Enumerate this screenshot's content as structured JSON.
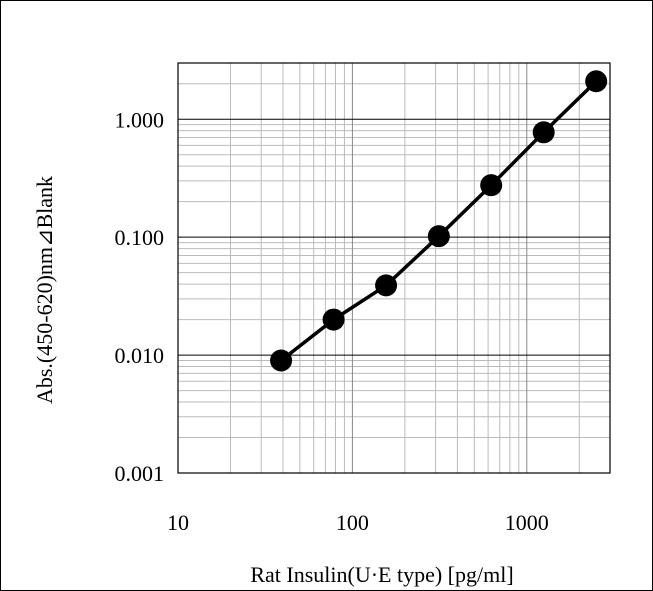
{
  "chart_data": {
    "type": "scatter",
    "title": "",
    "xlabel": "Rat Insulin(U·E type) [pg/ml]",
    "ylabel": "Abs.(450-620)nm⊿Blank",
    "x_scale": "log",
    "y_scale": "log",
    "xlim": [
      10,
      3000
    ],
    "ylim": [
      0.001,
      3.0
    ],
    "x_ticks": [
      10,
      100,
      1000
    ],
    "x_tick_labels": [
      "10",
      "100",
      "1000"
    ],
    "y_ticks": [
      0.001,
      0.01,
      0.1,
      1.0
    ],
    "y_tick_labels": [
      "0.001",
      "0.010",
      "0.100",
      "1.000"
    ],
    "grid": true,
    "legend": "none",
    "series": [
      {
        "line": true,
        "marker": "circle",
        "color": "#000000",
        "points": [
          {
            "x": 39,
            "y": 0.009
          },
          {
            "x": 78,
            "y": 0.02
          },
          {
            "x": 156,
            "y": 0.039
          },
          {
            "x": 313,
            "y": 0.102
          },
          {
            "x": 625,
            "y": 0.276
          },
          {
            "x": 1250,
            "y": 0.775
          },
          {
            "x": 2500,
            "y": 2.1
          }
        ]
      }
    ]
  }
}
